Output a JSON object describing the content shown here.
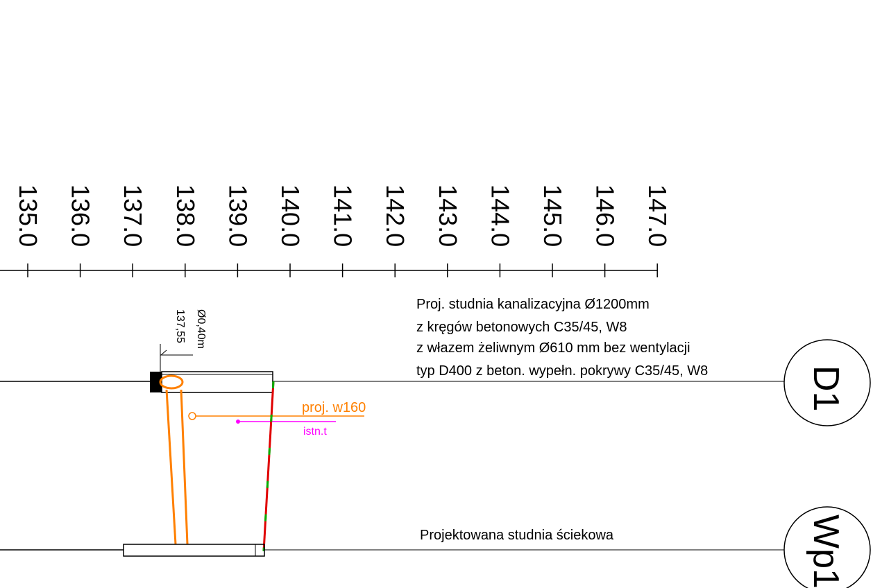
{
  "scale": {
    "labels": [
      "135.0",
      "136.0",
      "137.0",
      "138.0",
      "139.0",
      "140.0",
      "141.0",
      "142.0",
      "143.0",
      "144.0",
      "145.0",
      "146.0",
      "147.0"
    ]
  },
  "wells": {
    "d1": {
      "tag": "D1",
      "description": [
        "Proj. studnia kanalizacyjna Ø1200mm",
        "z kręgów betonowych C35/45, W8",
        "z włazem żeliwnym Ø610 mm bez wentylacji",
        "typ D400 z beton. wypełn. pokrywy C35/45, W8"
      ]
    },
    "wp1": {
      "tag": "Wp1",
      "description": "Projektowana studnia ściekowa"
    }
  },
  "pipe": {
    "diameter_label": "Ø0,40m",
    "level_label": "137,55",
    "proj_label": "proj. w160",
    "existing_label": "istn.t"
  },
  "colors": {
    "line": "#000000",
    "projected": "#ff8000",
    "existing": "#ff00ff",
    "red": "#e00000",
    "green": "#00b000"
  }
}
